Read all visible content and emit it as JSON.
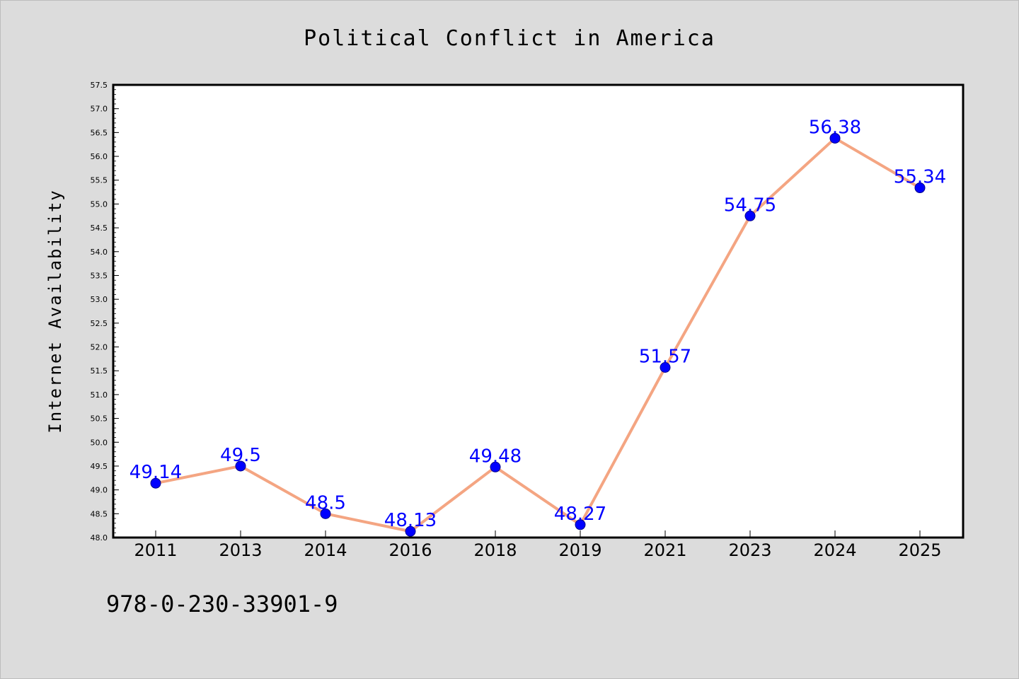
{
  "chart_data": {
    "type": "line",
    "title": "Political Conflict in America",
    "xlabel": "",
    "ylabel": "Internet Availability",
    "categories": [
      "2011",
      "2013",
      "2014",
      "2016",
      "2018",
      "2019",
      "2021",
      "2023",
      "2024",
      "2025"
    ],
    "series": [
      {
        "values": [
          49.14,
          49.5,
          48.5,
          48.13,
          49.48,
          48.27,
          51.57,
          54.75,
          56.38,
          55.34
        ],
        "data_labels": [
          "49.14",
          "49.5",
          "48.5",
          "48.13",
          "49.48",
          "48.27",
          "51.57",
          "54.75",
          "56.38",
          "55.34"
        ]
      }
    ],
    "ylim": [
      48.0,
      57.5
    ],
    "yticks": [
      "48.0",
      "48.5",
      "49.0",
      "49.5",
      "50.0",
      "50.5",
      "51.0",
      "51.5",
      "52.0",
      "52.5",
      "53.0",
      "53.5",
      "54.0",
      "54.5",
      "55.0",
      "55.5",
      "56.0",
      "56.5",
      "57.0",
      "57.5"
    ],
    "grid": false,
    "legend": "none",
    "colors": {
      "background": "#dcdcdc",
      "plot_background": "#ffffff",
      "line": "#f4a582",
      "marker": "#0000ff",
      "data_label": "#0000ff",
      "axis": "#000000"
    }
  },
  "footer": {
    "isbn": "978-0-230-33901-9"
  }
}
